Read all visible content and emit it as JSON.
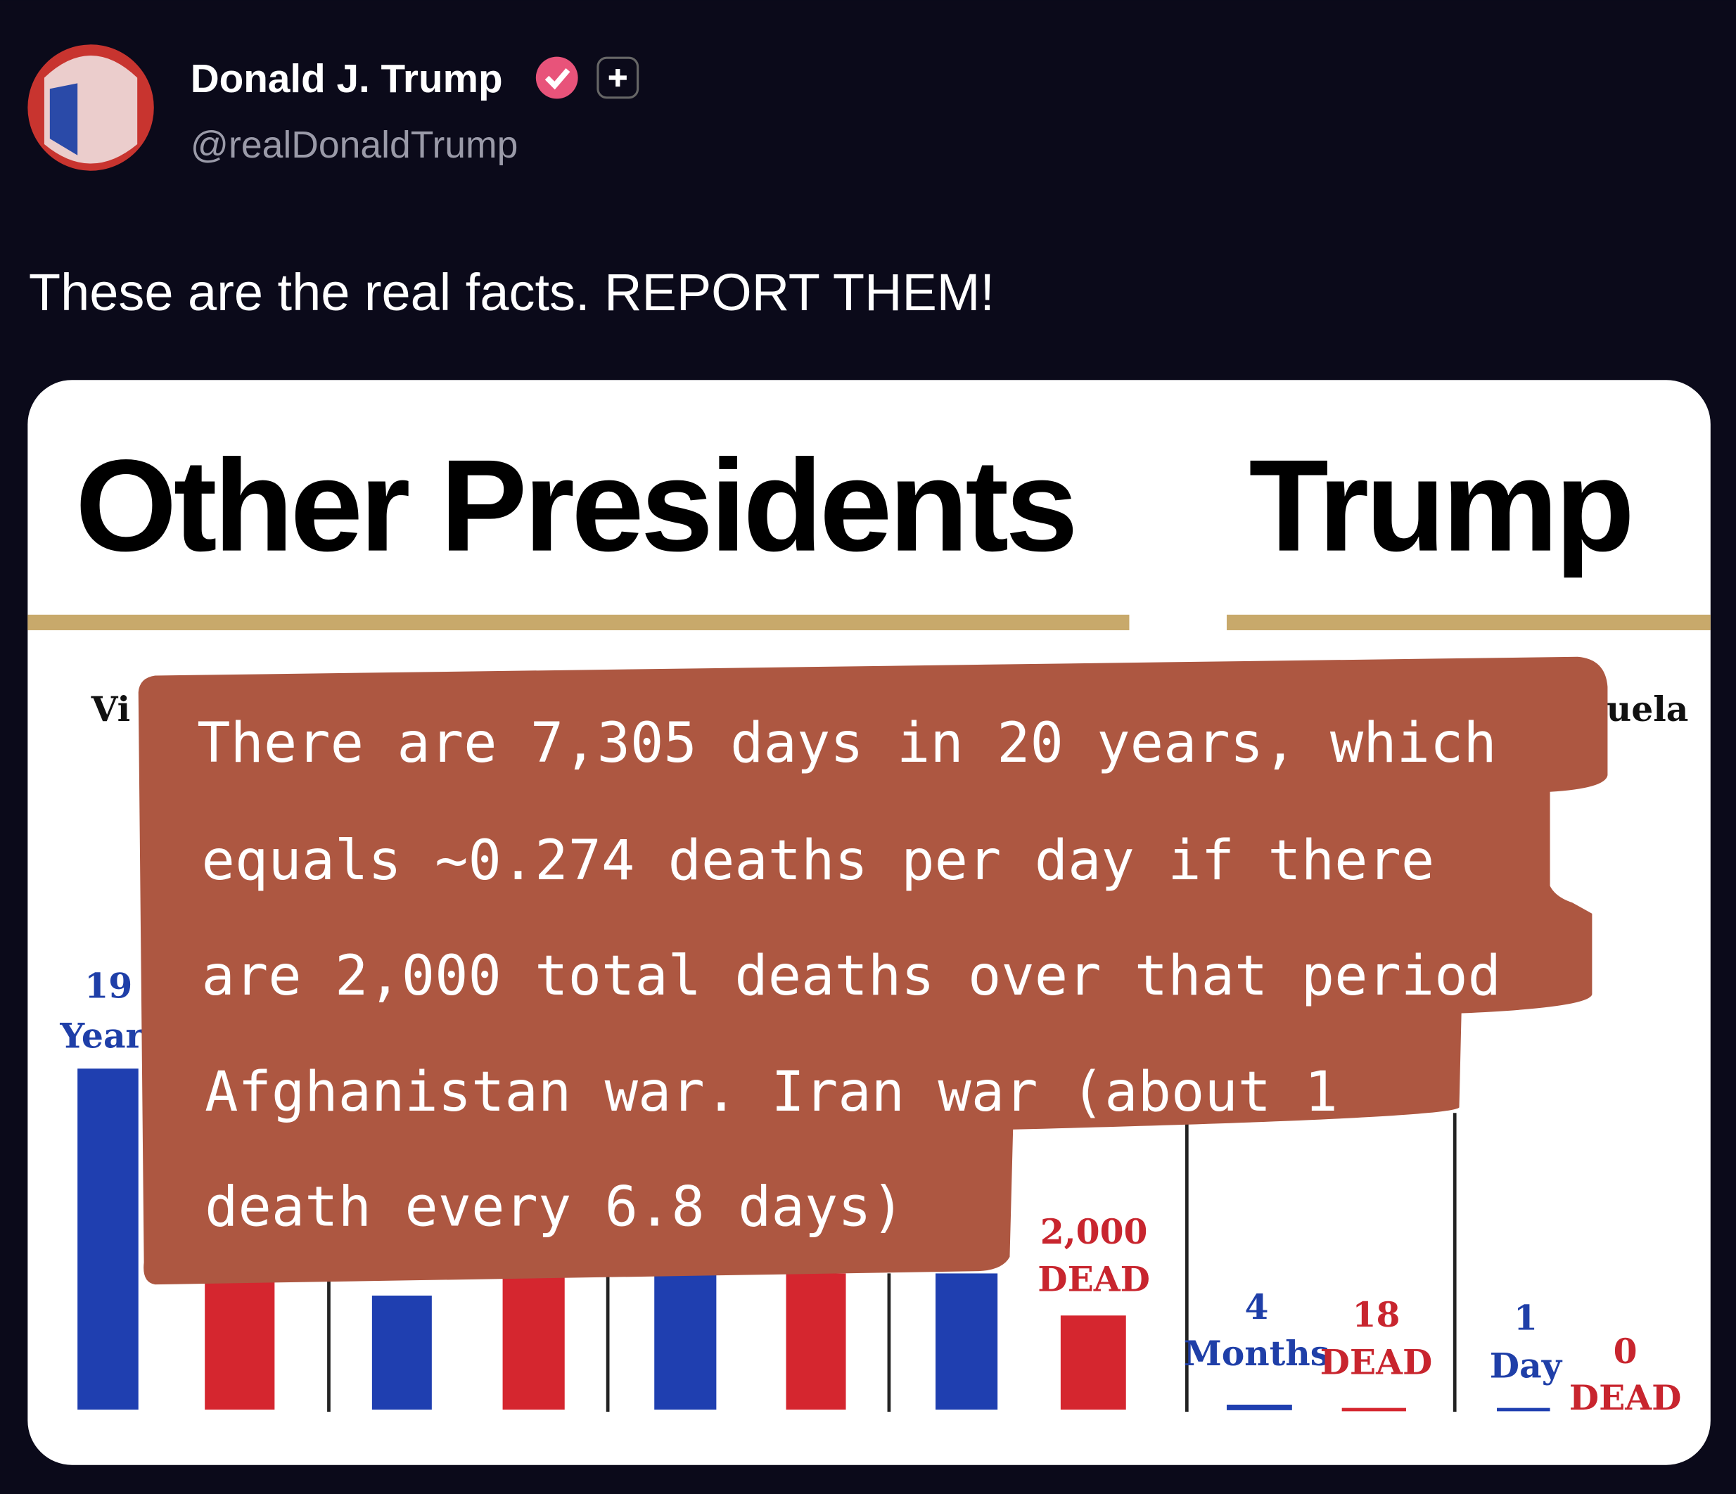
{
  "post": {
    "author": "Donald J. Trump",
    "handle": "@realDonaldTrump",
    "text": "These are the real facts. REPORT THEM!"
  },
  "image": {
    "headings": [
      "Other Presidents",
      "Trump"
    ],
    "labels": [
      "Vi",
      "uela",
      "19",
      "Year",
      "2,000",
      "DEAD",
      "4",
      "Months",
      "18",
      "DEAD",
      "1",
      "Day",
      "0",
      "DEAD"
    ],
    "overlay": [
      "There are 7,305 days in 20 years, which",
      "equals ~0.274 deaths per day if there",
      "are 2,000 total deaths over that period",
      "Afghanistan war. Iran war (about 1",
      "death every 6.8 days)"
    ]
  }
}
